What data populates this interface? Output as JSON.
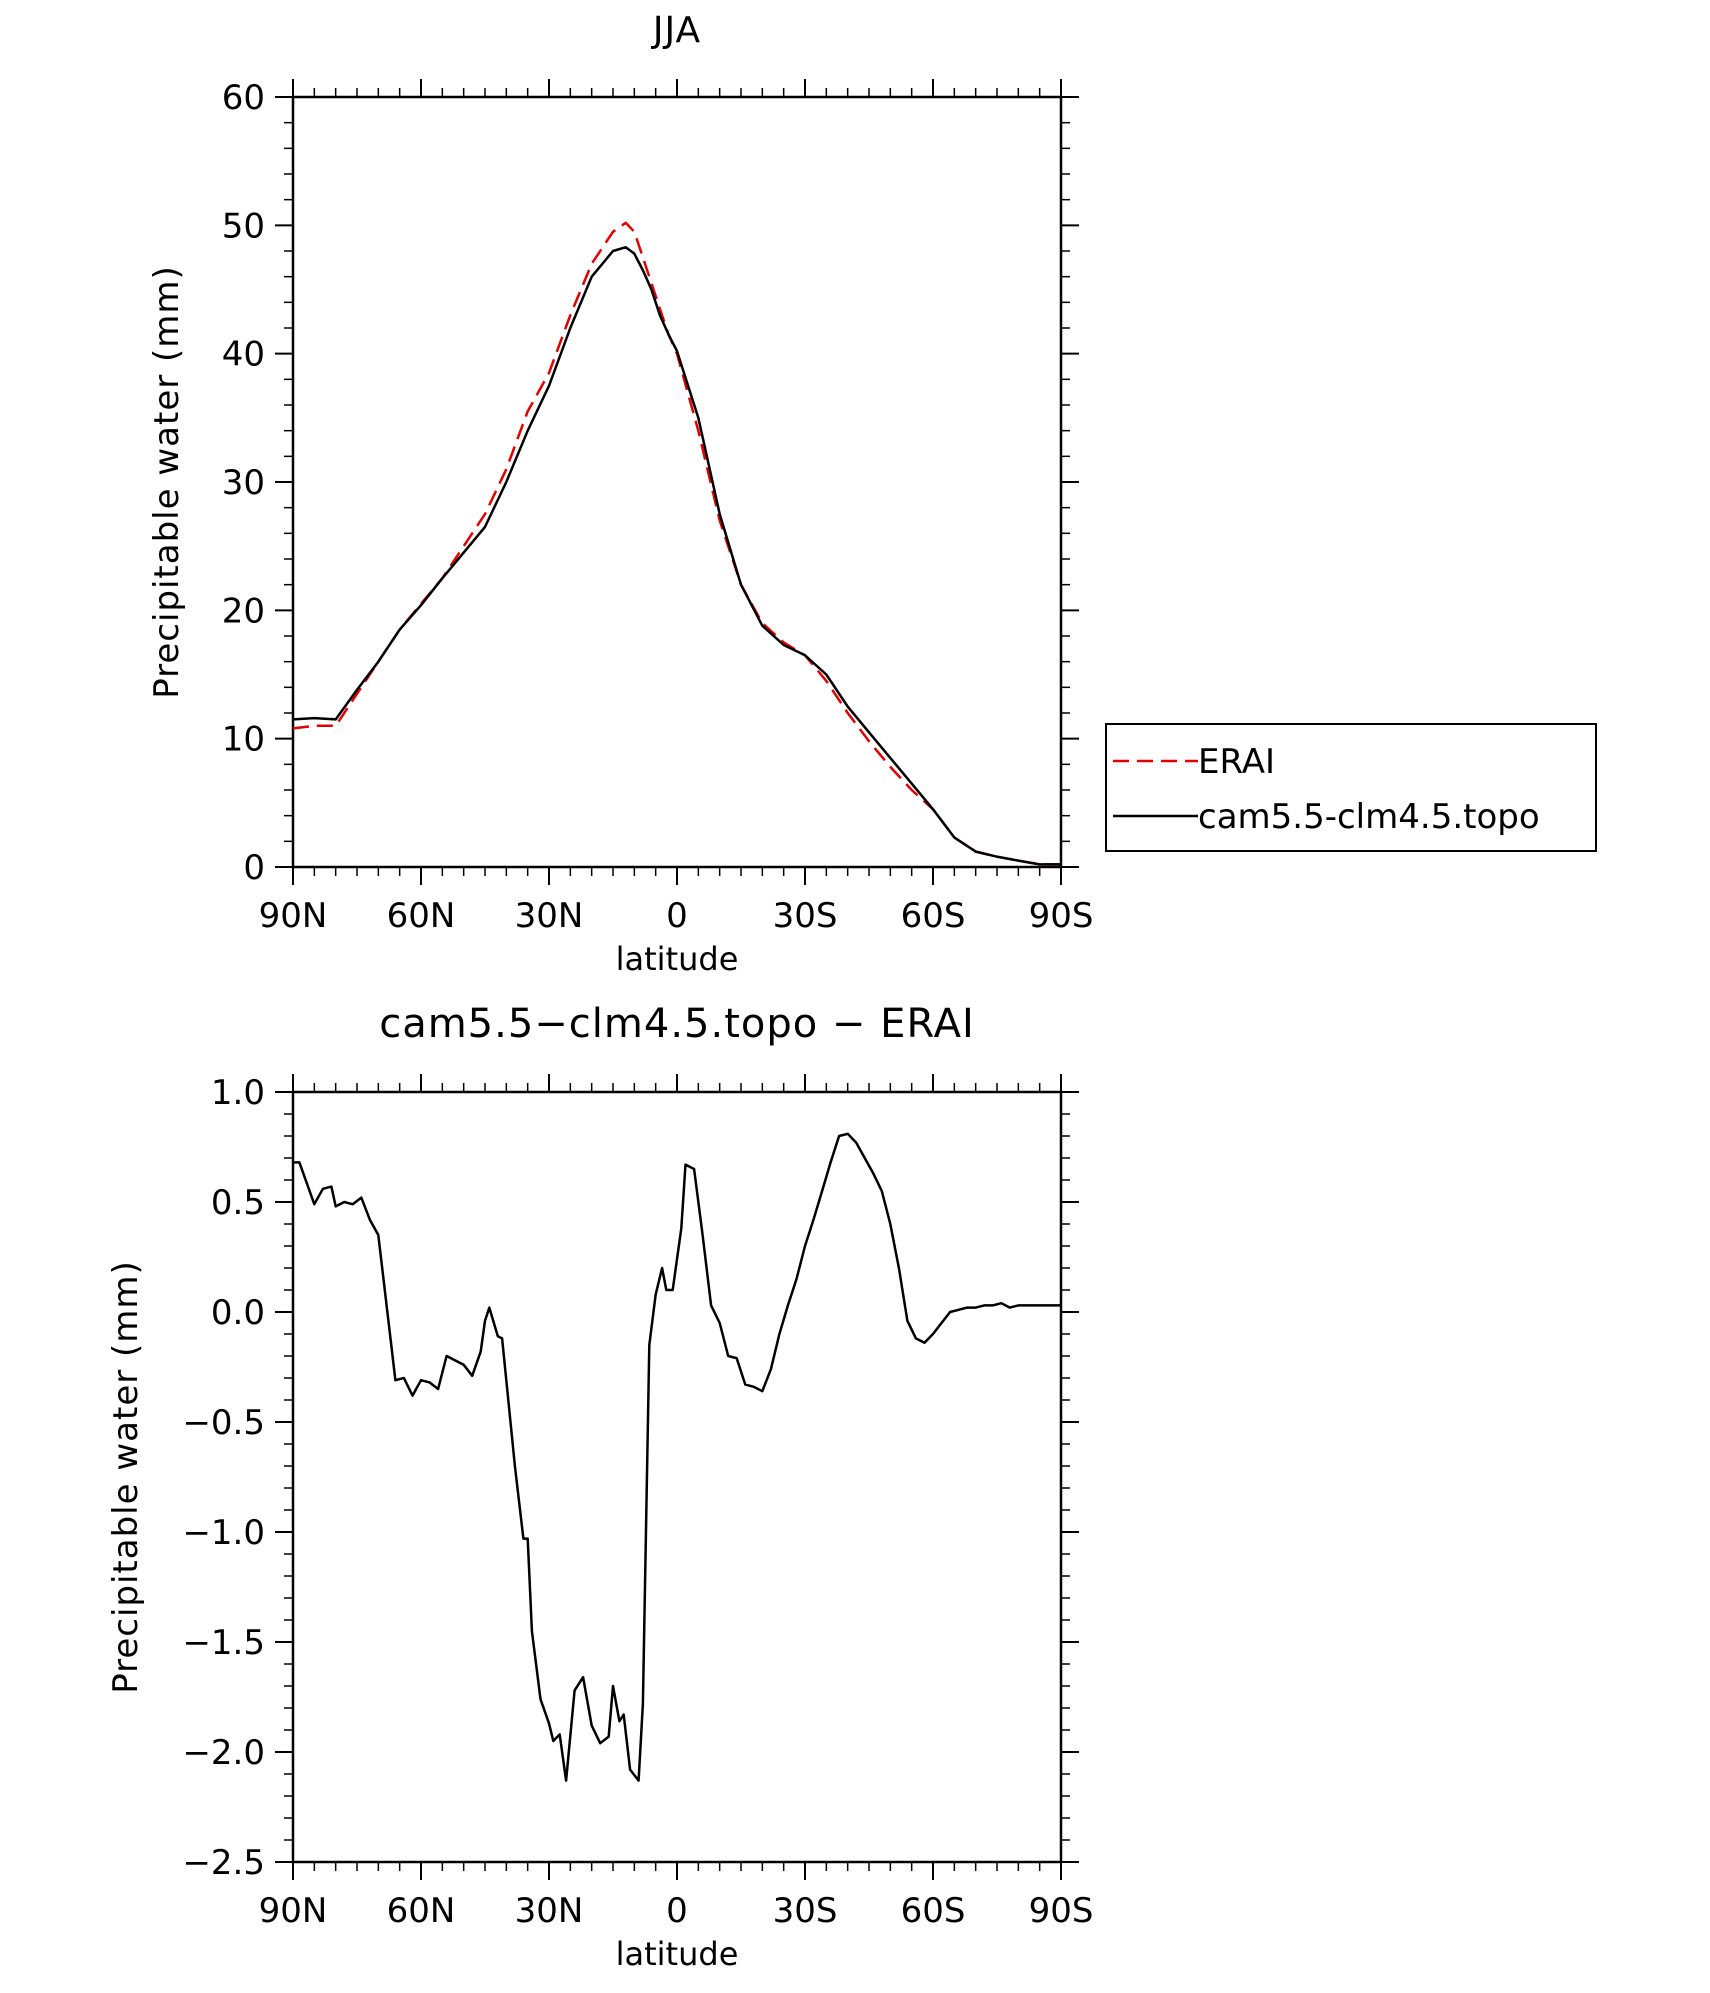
{
  "chart_data": [
    {
      "type": "line",
      "title": "JJA",
      "xlabel": "latitude",
      "ylabel": "Precipitable water (mm)",
      "xlim": [
        90,
        -90
      ],
      "ylim": [
        0,
        60
      ],
      "x_ticks": [
        90,
        60,
        30,
        0,
        -30,
        -60,
        -90
      ],
      "x_tick_labels": [
        "90N",
        "60N",
        "30N",
        "0",
        "30S",
        "60S",
        "90S"
      ],
      "y_ticks": [
        0,
        10,
        20,
        30,
        40,
        50,
        60
      ],
      "y_tick_labels": [
        "0",
        "10",
        "20",
        "30",
        "40",
        "50",
        "60"
      ],
      "legend_position": "right-outside",
      "series": [
        {
          "name": "ERAI",
          "color": "#e00000",
          "style": "dashed",
          "x": [
            90,
            85,
            80,
            75,
            70,
            65,
            60,
            55,
            50,
            45,
            40,
            35,
            30,
            25,
            20,
            15,
            12,
            10,
            8,
            6,
            4,
            2,
            0,
            -5,
            -10,
            -15,
            -20,
            -25,
            -30,
            -35,
            -40,
            -45,
            -50,
            -55,
            -60,
            -65,
            -70,
            -75,
            -80,
            -85,
            -90
          ],
          "values": [
            10.8,
            11.0,
            11.0,
            13.5,
            16.0,
            18.5,
            20.5,
            22.5,
            25.0,
            27.5,
            31.0,
            35.5,
            38.5,
            43.0,
            47.0,
            49.5,
            50.2,
            49.5,
            47.5,
            45.5,
            43.5,
            41.5,
            40.0,
            34.0,
            27.0,
            22.0,
            19.0,
            17.5,
            16.5,
            14.5,
            12.0,
            9.8,
            7.8,
            6.0,
            4.5,
            2.3,
            1.2,
            0.8,
            0.5,
            0.2,
            0.2
          ]
        },
        {
          "name": "cam5.5-clm4.5.topo",
          "color": "#000000",
          "style": "solid",
          "x": [
            90,
            85,
            80,
            75,
            70,
            65,
            60,
            55,
            50,
            45,
            40,
            35,
            30,
            25,
            20,
            15,
            12,
            10,
            8,
            6,
            4,
            2,
            0,
            -5,
            -10,
            -15,
            -20,
            -25,
            -30,
            -35,
            -40,
            -45,
            -50,
            -55,
            -60,
            -65,
            -70,
            -75,
            -80,
            -85,
            -90
          ],
          "values": [
            11.5,
            11.6,
            11.5,
            13.8,
            16.0,
            18.5,
            20.4,
            22.5,
            24.5,
            26.5,
            30.0,
            34.0,
            37.5,
            42.0,
            46.0,
            48.0,
            48.3,
            47.8,
            46.5,
            45.0,
            43.0,
            41.5,
            40.2,
            35.0,
            27.5,
            22.0,
            18.8,
            17.3,
            16.5,
            15.0,
            12.5,
            10.5,
            8.5,
            6.5,
            4.5,
            2.3,
            1.2,
            0.8,
            0.5,
            0.2,
            0.2
          ]
        }
      ]
    },
    {
      "type": "line",
      "title": "cam5.5−clm4.5.topo − ERAI",
      "xlabel": "latitude",
      "ylabel": "Precipitable water (mm)",
      "xlim": [
        90,
        -90
      ],
      "ylim": [
        -2.5,
        1.0
      ],
      "x_ticks": [
        90,
        60,
        30,
        0,
        -30,
        -60,
        -90
      ],
      "x_tick_labels": [
        "90N",
        "60N",
        "30N",
        "0",
        "30S",
        "60S",
        "90S"
      ],
      "y_ticks": [
        1.0,
        0.5,
        0.0,
        -0.5,
        -1.0,
        -1.5,
        -2.0,
        -2.5
      ],
      "y_tick_labels": [
        "1.0",
        "0.5",
        "0.0",
        "−0.5",
        "−1.0",
        "−1.5",
        "−2.0",
        "−2.5"
      ],
      "series": [
        {
          "name": "cam5.5-clm4.5.topo − ERAI",
          "color": "#000000",
          "style": "solid",
          "x": [
            90,
            88.5,
            85,
            83,
            81,
            80,
            78,
            76,
            74,
            72,
            70,
            66,
            64,
            62,
            60,
            58,
            56,
            54,
            52,
            50,
            48,
            46,
            45,
            44,
            42,
            41,
            40,
            38,
            36,
            35,
            34,
            32,
            30,
            29,
            27.5,
            26,
            24,
            22,
            20,
            18,
            16,
            15,
            13.5,
            12.5,
            11,
            9,
            8,
            6.5,
            5,
            3.5,
            2.5,
            1,
            -1,
            -2,
            -4,
            -6,
            -8,
            -10,
            -12,
            -14,
            -16,
            -18,
            -20,
            -22,
            -24,
            -26,
            -28,
            -30,
            -32,
            -34,
            -36,
            -38,
            -40,
            -42,
            -44,
            -46,
            -48,
            -50,
            -52,
            -54,
            -56,
            -58,
            -60,
            -62,
            -64,
            -66,
            -68,
            -70,
            -72,
            -74,
            -76,
            -78,
            -80,
            -82,
            -84,
            -85,
            -86,
            -88,
            -90
          ],
          "values": [
            0.68,
            0.68,
            0.49,
            0.56,
            0.57,
            0.48,
            0.5,
            0.49,
            0.52,
            0.42,
            0.35,
            -0.31,
            -0.3,
            -0.38,
            -0.31,
            -0.32,
            -0.35,
            -0.2,
            -0.22,
            -0.24,
            -0.29,
            -0.18,
            -0.04,
            0.02,
            -0.11,
            -0.12,
            -0.31,
            -0.7,
            -1.03,
            -1.03,
            -1.45,
            -1.76,
            -1.87,
            -1.95,
            -1.92,
            -2.13,
            -1.72,
            -1.66,
            -1.88,
            -1.96,
            -1.93,
            -1.7,
            -1.86,
            -1.83,
            -2.08,
            -2.13,
            -1.78,
            -0.15,
            0.08,
            0.2,
            0.1,
            0.1,
            0.38,
            0.67,
            0.65,
            0.35,
            0.03,
            -0.05,
            -0.2,
            -0.21,
            -0.33,
            -0.34,
            -0.36,
            -0.26,
            -0.1,
            0.03,
            0.15,
            0.3,
            0.42,
            0.55,
            0.68,
            0.8,
            0.81,
            0.77,
            0.7,
            0.63,
            0.55,
            0.4,
            0.2,
            -0.04,
            -0.12,
            -0.14,
            -0.1,
            -0.05,
            0.0,
            0.01,
            0.02,
            0.02,
            0.03,
            0.03,
            0.04,
            0.02,
            0.03,
            0.03,
            0.03,
            0.03,
            0.03,
            0.03,
            0.03
          ]
        }
      ]
    }
  ]
}
